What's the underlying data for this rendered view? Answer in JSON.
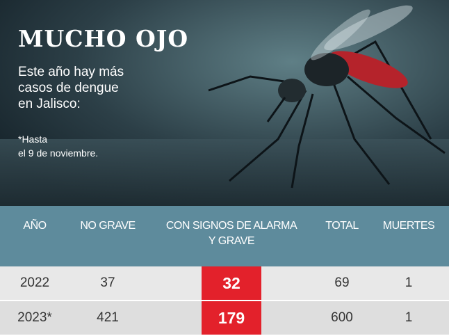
{
  "header": {
    "title": "MUCHO OJO",
    "subtitle": [
      "Este año hay más",
      "casos de dengue",
      "en Jalisco:"
    ],
    "note": [
      "*Hasta",
      "el 9 de noviembre."
    ]
  },
  "table": {
    "columns": [
      "AÑO",
      "NO GRAVE",
      "CON SIGNOS DE ALARMA Y GRAVE",
      "TOTAL",
      "MUERTES"
    ],
    "rows": [
      [
        "2022",
        37,
        32,
        69,
        1
      ],
      [
        "2023*",
        421,
        179,
        600,
        1
      ]
    ],
    "highlight_column": 2
  }
}
